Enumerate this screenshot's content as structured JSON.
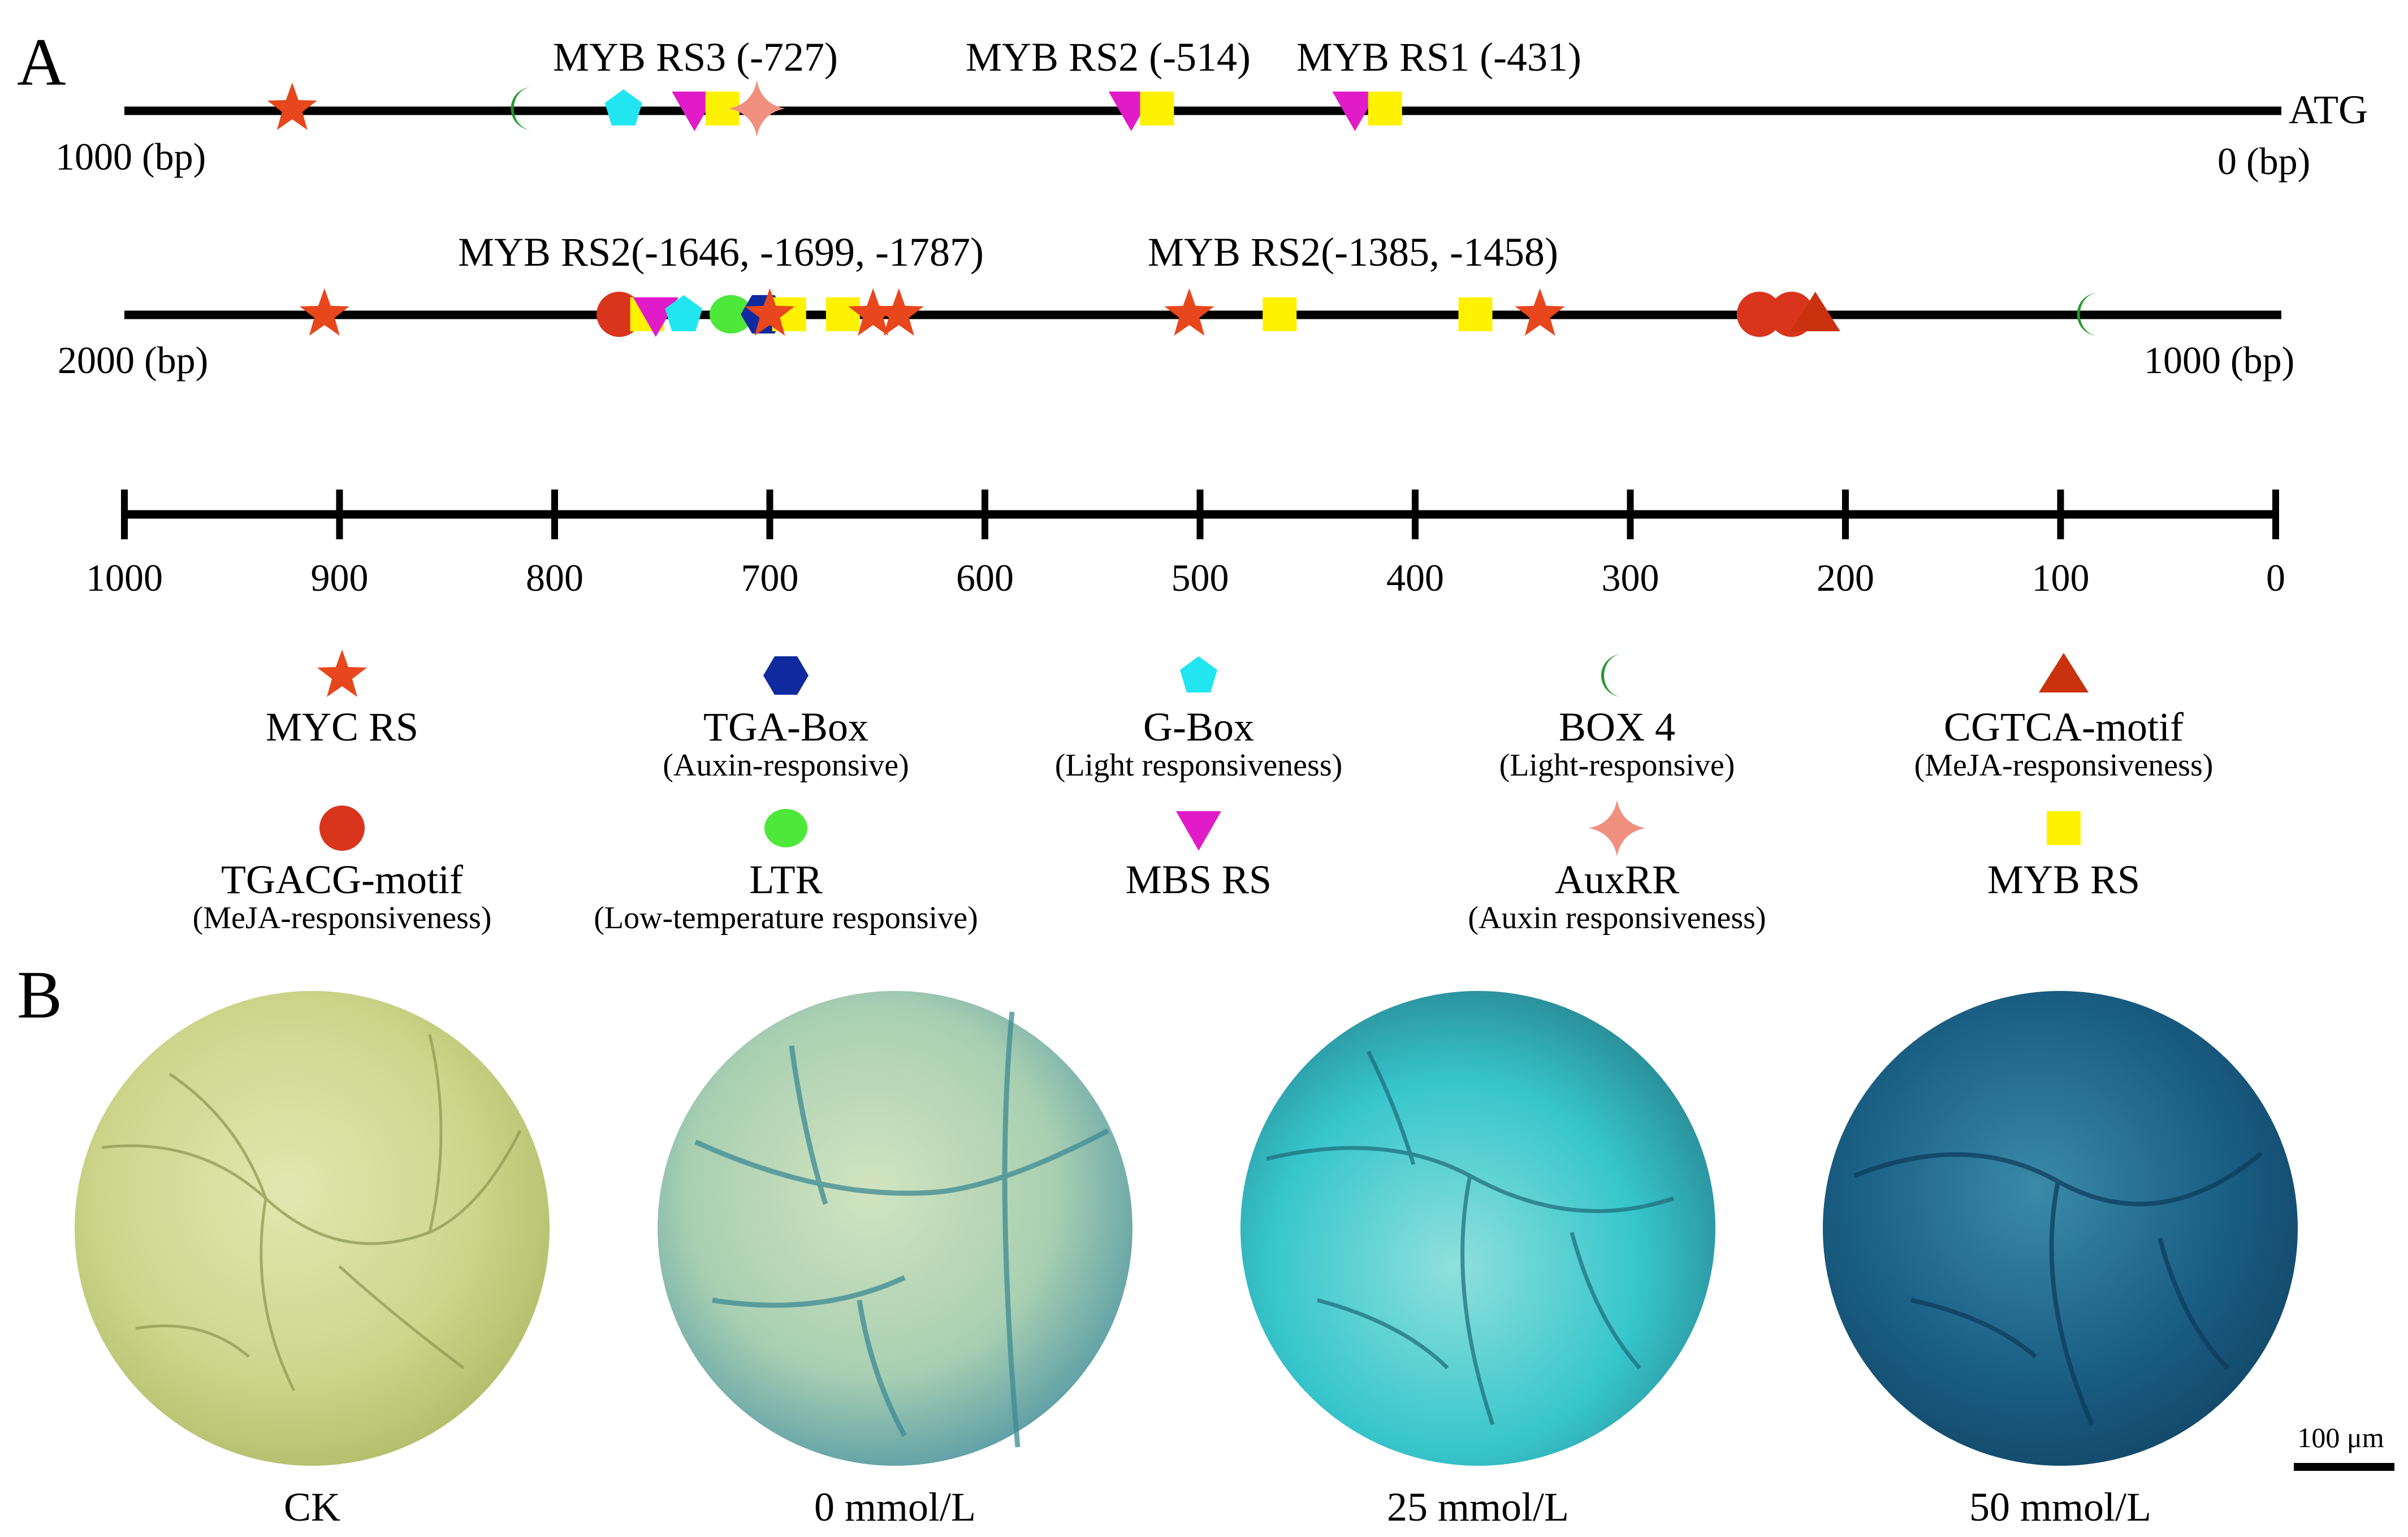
{
  "panel_a": {
    "letter": "A",
    "track1": {
      "right_tag": "ATG",
      "left_label": "1000 (bp)",
      "right_label": "0 (bp)",
      "annotations": [
        "MYB RS3 (-727)",
        "MYB RS2 (-514)",
        "MYB RS1 (-431)"
      ],
      "elements": [
        {
          "kind": "myc",
          "pos": 922
        },
        {
          "kind": "box4",
          "pos": 813
        },
        {
          "kind": "gbox",
          "pos": 768
        },
        {
          "kind": "mbs",
          "pos": 735
        },
        {
          "kind": "myb",
          "pos": 722
        },
        {
          "kind": "auxrr",
          "pos": 706
        },
        {
          "kind": "mbs",
          "pos": 532
        },
        {
          "kind": "myb",
          "pos": 520
        },
        {
          "kind": "mbs",
          "pos": 428
        },
        {
          "kind": "myb",
          "pos": 414
        }
      ]
    },
    "track2": {
      "left_label": "2000 (bp)",
      "right_label": "1000 (bp)",
      "annotations": [
        "MYB RS2(-1646, -1699, -1787)",
        "MYB RS2(-1385, -1458)"
      ],
      "elements": [
        {
          "kind": "myc",
          "pos": 1907
        },
        {
          "kind": "tgacg",
          "pos": 1770
        },
        {
          "kind": "myb",
          "pos": 1757
        },
        {
          "kind": "mbs",
          "pos": 1753
        },
        {
          "kind": "gbox",
          "pos": 1740
        },
        {
          "kind": "ltr",
          "pos": 1718
        },
        {
          "kind": "tga",
          "pos": 1703
        },
        {
          "kind": "myb",
          "pos": 1691
        },
        {
          "kind": "myc",
          "pos": 1700
        },
        {
          "kind": "myb",
          "pos": 1666
        },
        {
          "kind": "myc",
          "pos": 1652
        },
        {
          "kind": "myc",
          "pos": 1640
        },
        {
          "kind": "myc",
          "pos": 1505
        },
        {
          "kind": "myb",
          "pos": 1463
        },
        {
          "kind": "myb",
          "pos": 1372
        },
        {
          "kind": "myc",
          "pos": 1342
        },
        {
          "kind": "tgacg",
          "pos": 1240
        },
        {
          "kind": "tgacg",
          "pos": 1225
        },
        {
          "kind": "cgtca",
          "pos": 1214
        },
        {
          "kind": "box4",
          "pos": 1085
        }
      ]
    },
    "axis": {
      "ticks": [
        "1000",
        "900",
        "800",
        "700",
        "600",
        "500",
        "400",
        "300",
        "200",
        "100",
        "0"
      ]
    },
    "legend": [
      {
        "kind": "myc",
        "name": "MYC RS",
        "sub": ""
      },
      {
        "kind": "tga",
        "name": "TGA-Box",
        "sub": "(Auxin-responsive)"
      },
      {
        "kind": "gbox",
        "name": "G-Box",
        "sub": "(Light responsiveness)"
      },
      {
        "kind": "box4",
        "name": "BOX 4",
        "sub": "(Light-responsive)"
      },
      {
        "kind": "cgtca",
        "name": "CGTCA-motif",
        "sub": "(MeJA-responsiveness)"
      },
      {
        "kind": "tgacg",
        "name": "TGACG-motif",
        "sub": "(MeJA-responsiveness)"
      },
      {
        "kind": "ltr",
        "name": "LTR",
        "sub": "(Low-temperature responsive)"
      },
      {
        "kind": "mbs",
        "name": "MBS RS",
        "sub": ""
      },
      {
        "kind": "auxrr",
        "name": "AuxRR",
        "sub": "(Auxin responsiveness)"
      },
      {
        "kind": "myb",
        "name": "MYB RS",
        "sub": ""
      }
    ],
    "colors": {
      "myc": "#e8461c",
      "tga": "#0f2a9e",
      "gbox": "#21e6f0",
      "box4": "#1f9a2a",
      "cgtca": "#c9310f",
      "tgacg": "#d9351c",
      "ltr": "#4ee83a",
      "mbs": "#e21bc8",
      "auxrr": "#f0907e",
      "myb": "#fff200"
    }
  },
  "panel_b": {
    "letter": "B",
    "samples": [
      {
        "label": "CK",
        "stain_level": 0.0,
        "colors": [
          "#e2e7b0",
          "#cdd68c",
          "#b3bf6c"
        ]
      },
      {
        "label": "0 mmol/L",
        "stain_level": 0.33,
        "colors": [
          "#d2e4bf",
          "#a8cfb2",
          "#5fa0a6"
        ]
      },
      {
        "label": "25 mmol/L",
        "stain_level": 0.66,
        "colors": [
          "#8fe0dc",
          "#37c6cc",
          "#2a8f9a"
        ]
      },
      {
        "label": "50 mmol/L",
        "stain_level": 1.0,
        "colors": [
          "#3a8aa8",
          "#1a5f84",
          "#134a6c"
        ]
      }
    ],
    "scale_bar": "100 μm"
  }
}
